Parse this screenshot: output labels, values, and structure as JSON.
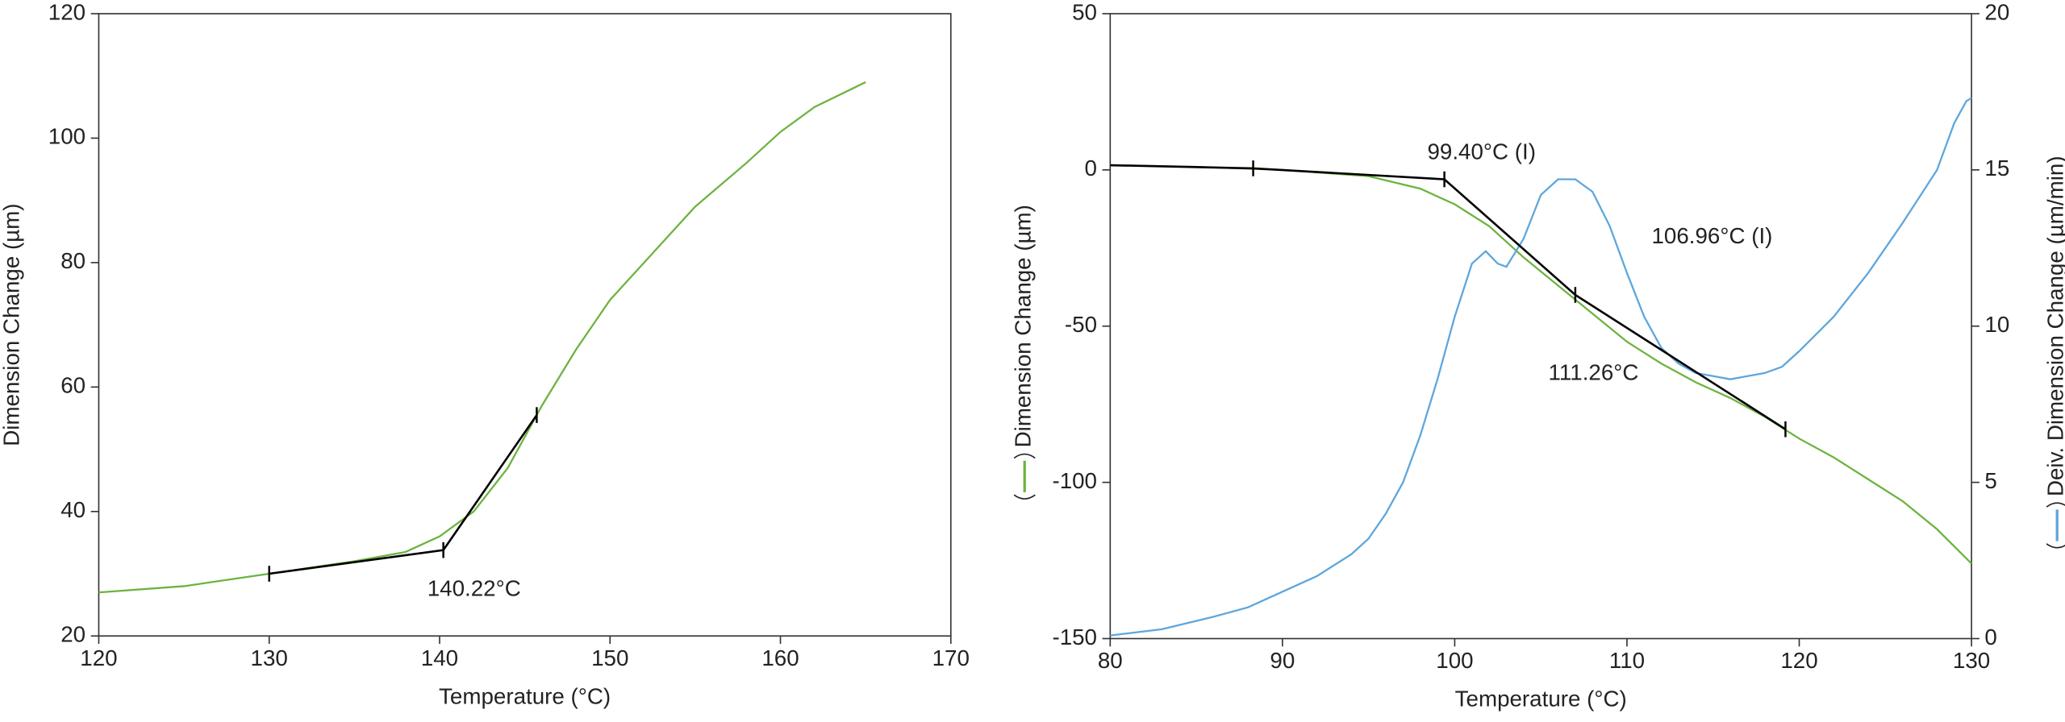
{
  "chart_data": [
    {
      "type": "line",
      "xlabel": "Temperature (°C)",
      "ylabel": "Dimension Change (µm)",
      "xlim": [
        120,
        170
      ],
      "xticks": [
        120,
        130,
        140,
        150,
        160,
        170
      ],
      "ylim": [
        20,
        120
      ],
      "yticks": [
        20,
        40,
        60,
        80,
        100,
        120
      ],
      "series": [
        {
          "color": "#6db33f",
          "x": [
            120,
            125,
            130,
            135,
            138,
            140,
            142,
            144,
            146,
            148,
            150,
            152,
            155,
            158,
            160,
            162,
            165
          ],
          "values": [
            27,
            28,
            30,
            32,
            33.5,
            36,
            40,
            47,
            57,
            66,
            74,
            80,
            89,
            96,
            101,
            105,
            109
          ]
        },
        {
          "color": "#000000",
          "marker": "tick",
          "x": [
            130,
            140.22,
            145.7
          ],
          "values": [
            30,
            33.8,
            55.5
          ]
        }
      ],
      "annotations": [
        "140.22°C"
      ]
    },
    {
      "type": "line",
      "xlabel": "Temperature (°C)",
      "ylabel": "Dimension Change (µm)",
      "y2label": "Deiv. Dimension Change (µm/min)",
      "xlim": [
        80,
        130
      ],
      "xticks": [
        80,
        90,
        100,
        110,
        120,
        130
      ],
      "ylim": [
        -150,
        50
      ],
      "yticks": [
        -150,
        -100,
        -50,
        0,
        50
      ],
      "y2lim": [
        0,
        20
      ],
      "y2ticks": [
        0,
        5,
        10,
        15,
        20
      ],
      "series": [
        {
          "color": "#6db33f",
          "x": [
            80,
            85,
            90,
            95,
            98,
            100,
            102,
            104,
            106,
            108,
            110,
            112,
            114,
            116,
            118,
            120,
            122,
            124,
            126,
            128,
            130
          ],
          "values": [
            1.5,
            1,
            0,
            -2,
            -6,
            -11,
            -18,
            -28,
            -37,
            -46,
            -55,
            -62,
            -68,
            -73,
            -79,
            -86,
            -92,
            -99,
            -106,
            -115,
            -126
          ]
        },
        {
          "color": "#5ea6dc",
          "axis": "y2",
          "x": [
            80,
            83,
            86,
            88,
            90,
            92,
            94,
            95,
            96,
            97,
            98,
            99,
            100,
            101,
            101.8,
            102.5,
            103,
            104,
            105,
            106,
            107,
            108,
            109,
            110,
            111,
            112,
            113,
            114,
            115,
            116,
            117,
            118,
            119,
            120,
            122,
            124,
            126,
            128,
            129,
            129.7,
            130
          ],
          "values": [
            0.1,
            0.3,
            0.7,
            1.0,
            1.5,
            2.0,
            2.7,
            3.2,
            4.0,
            5.0,
            6.5,
            8.3,
            10.3,
            12.0,
            12.4,
            12.0,
            11.9,
            12.8,
            14.2,
            14.7,
            14.7,
            14.3,
            13.2,
            11.7,
            10.3,
            9.3,
            8.8,
            8.5,
            8.4,
            8.3,
            8.4,
            8.5,
            8.7,
            9.2,
            10.3,
            11.7,
            13.3,
            15.0,
            16.5,
            17.2,
            17.3
          ]
        },
        {
          "color": "#000000",
          "marker": "tick",
          "x": [
            80,
            88.3,
            99.4,
            107,
            119.2
          ],
          "values": [
            1.5,
            0.5,
            -3,
            -40,
            -83
          ]
        }
      ],
      "annotations": [
        "99.40°C (I)",
        "106.96°C (I)",
        "111.26°C"
      ]
    }
  ]
}
